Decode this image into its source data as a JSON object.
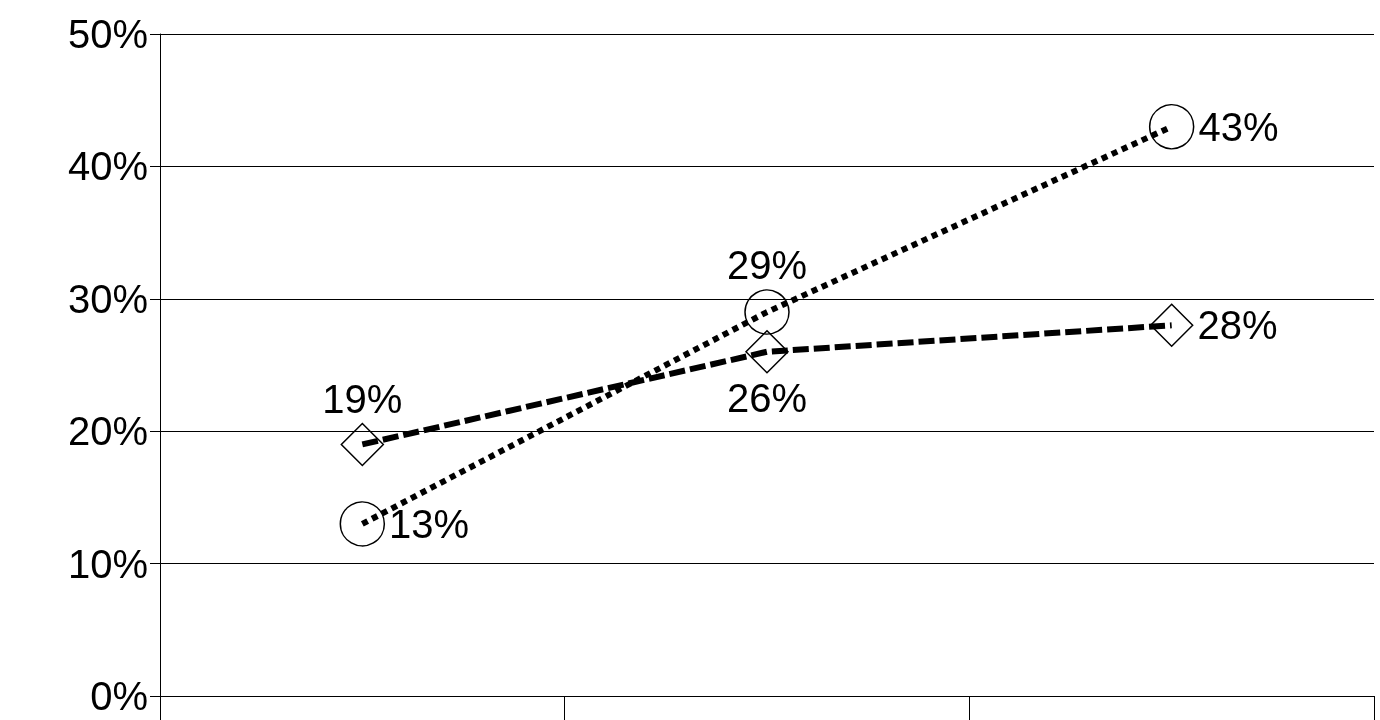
{
  "chart_data": {
    "type": "line",
    "categories": [
      null,
      null,
      null
    ],
    "series": [
      {
        "color": "#000000",
        "values": [
          19,
          26,
          28
        ],
        "marker": "diamond",
        "line_style": "dashed",
        "value_labels": [
          "19%",
          "26%",
          "28%"
        ]
      },
      {
        "color": "#000000",
        "values": [
          13,
          29,
          43
        ],
        "marker": "circle",
        "line_style": "dotted",
        "value_labels": [
          "13%",
          "29%",
          "43%"
        ]
      }
    ],
    "ylim": [
      0,
      50
    ],
    "yticks": [
      {
        "value": 0,
        "label": "0%"
      },
      {
        "value": 10,
        "label": "10%"
      },
      {
        "value": 20,
        "label": "20%"
      },
      {
        "value": 30,
        "label": "30%"
      },
      {
        "value": 40,
        "label": "40%"
      },
      {
        "value": 50,
        "label": "50%"
      }
    ],
    "grid": "y"
  }
}
